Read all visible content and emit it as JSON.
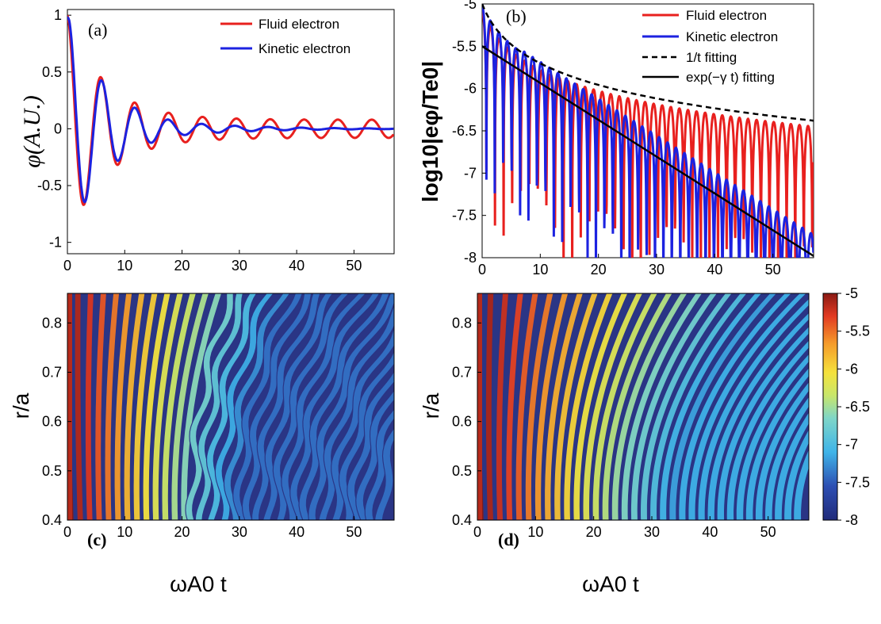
{
  "figure": {
    "panel_a_label": "(a)",
    "panel_b_label": "(b)",
    "panel_c_label": "(c)",
    "panel_d_label": "(d)"
  },
  "colors": {
    "fluid": "#e8201e",
    "kinetic": "#1c22e0",
    "black": "#000000"
  },
  "chart_data": [
    {
      "id": "a",
      "type": "line",
      "ylabel": "φ(A.U.)",
      "xlim": [
        0,
        57
      ],
      "ylim": [
        -1.1,
        1.05
      ],
      "xticks": [
        "0",
        "10",
        "20",
        "30",
        "40",
        "50"
      ],
      "yticks": [
        "1",
        "0.5",
        "0",
        "-0.5",
        "-1"
      ],
      "legend_position": "top-right",
      "series": [
        {
          "name": "Fluid electron",
          "color": "#e8201e",
          "model": {
            "amplitude": 1.0,
            "period": 5.9,
            "phase": 0.0,
            "decay_time": 6.5,
            "floor_amplitude": 0.08
          }
        },
        {
          "name": "Kinetic electron",
          "color": "#1c22e0",
          "model": {
            "amplitude": 1.0,
            "period": 5.8,
            "phase": -0.25,
            "decay_time": 7.0,
            "floor_amplitude": 0.0,
            "late_decay_time": 12.0
          }
        }
      ]
    },
    {
      "id": "b",
      "type": "line",
      "ylabel": "log10|eφ/Te0|",
      "xlim": [
        0,
        57
      ],
      "ylim": [
        -8,
        -5
      ],
      "xticks": [
        "0",
        "10",
        "20",
        "30",
        "40",
        "50"
      ],
      "yticks": [
        "-5",
        "-5.5",
        "-6",
        "-6.5",
        "-7",
        "-7.5",
        "-8"
      ],
      "legend_position": "top-right",
      "series": [
        {
          "name": "Fluid electron",
          "color": "#e8201e",
          "model": {
            "period": 2.95,
            "envelope": "1/t"
          }
        },
        {
          "name": "Kinetic electron",
          "color": "#1c22e0",
          "model": {
            "period": 2.9,
            "envelope": "1/t then exp"
          }
        },
        {
          "name": "1/t fitting",
          "color": "#000000",
          "dash": true,
          "model": {
            "form": "log10(A/(t+t0))",
            "y_at_0": -5.0,
            "y_at_57": -6.38
          }
        },
        {
          "name": "exp(−γ t) fitting",
          "color": "#000000",
          "model": {
            "form": "linear",
            "y_at_0": -5.5,
            "y_at_57": -7.98
          }
        }
      ]
    },
    {
      "id": "c",
      "type": "heatmap",
      "xlabel": "ωA0 t",
      "ylabel": "r/a",
      "xlim": [
        0,
        57
      ],
      "ylim": [
        0.4,
        0.86
      ],
      "xticks": [
        "0",
        "10",
        "20",
        "30",
        "40",
        "50"
      ],
      "yticks": [
        "0.8",
        "0.7",
        "0.6",
        "0.5",
        "0.4"
      ],
      "value_range": [
        -8,
        -5
      ],
      "case": "Fluid electron"
    },
    {
      "id": "d",
      "type": "heatmap",
      "xlabel": "ωA0 t",
      "ylabel": "r/a",
      "xlim": [
        0,
        57
      ],
      "ylim": [
        0.4,
        0.86
      ],
      "xticks": [
        "0",
        "10",
        "20",
        "30",
        "40",
        "50"
      ],
      "yticks": [
        "0.8",
        "0.7",
        "0.6",
        "0.5",
        "0.4"
      ],
      "value_range": [
        -8,
        -5
      ],
      "case": "Kinetic electron",
      "colorbar_ticks": [
        "-5",
        "-5.5",
        "-6",
        "-6.5",
        "-7",
        "-7.5",
        "-8"
      ]
    }
  ]
}
